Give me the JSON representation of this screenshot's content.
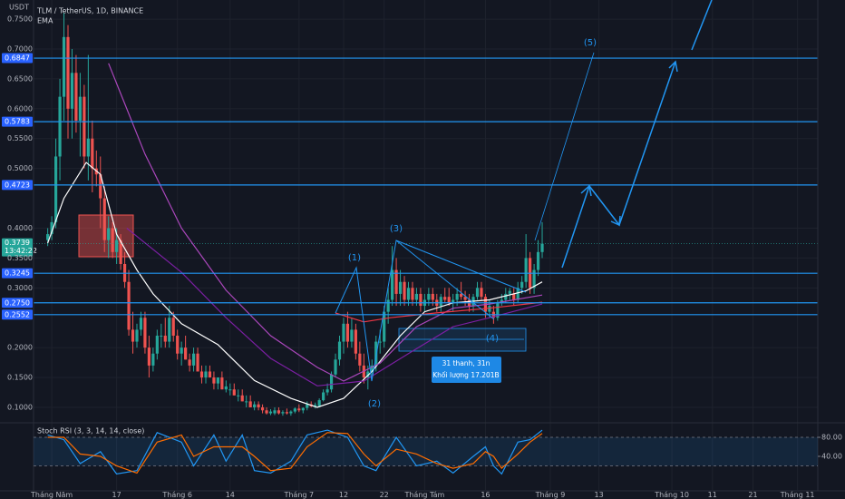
{
  "chart_data": {
    "type": "candlestick",
    "title": "TLM / TetherUS, 1D, BINANCE",
    "indicator_label": "EMA",
    "currency": "USDT",
    "up_color": "#26a69a",
    "down_color": "#ef5350",
    "x": [
      -1,
      0,
      1,
      2,
      3,
      4,
      5,
      6,
      7,
      8,
      9,
      10,
      11,
      12,
      13,
      14,
      15,
      16,
      17,
      18,
      19,
      20,
      21,
      22,
      23,
      24,
      25,
      26,
      27,
      28,
      29,
      30,
      31,
      32,
      33,
      34,
      35,
      36,
      37,
      38,
      39,
      40,
      41,
      42,
      43,
      44,
      45,
      46,
      47,
      48,
      49,
      50,
      51,
      52,
      53,
      54,
      55,
      56,
      57,
      58,
      59,
      60,
      61,
      62,
      63,
      64,
      65,
      66,
      67,
      68,
      69,
      70,
      71,
      72,
      73,
      74,
      75,
      76,
      77,
      78,
      79,
      80,
      81,
      82,
      83,
      84,
      85,
      86,
      87,
      88,
      89,
      90,
      91,
      92,
      93,
      94,
      95,
      96,
      97,
      98,
      99,
      100,
      101,
      102,
      103,
      104,
      105,
      106,
      107,
      108,
      109,
      110,
      111,
      112,
      113,
      114,
      115,
      116,
      117,
      118,
      119,
      120,
      121
    ],
    "ohlc": [
      [
        0.38,
        0.4,
        0.37,
        0.39
      ],
      [
        0.39,
        0.42,
        0.38,
        0.41
      ],
      [
        0.41,
        0.55,
        0.4,
        0.52
      ],
      [
        0.52,
        0.65,
        0.48,
        0.62
      ],
      [
        0.62,
        0.76,
        0.58,
        0.72
      ],
      [
        0.72,
        0.74,
        0.55,
        0.6
      ],
      [
        0.6,
        0.7,
        0.55,
        0.66
      ],
      [
        0.66,
        0.69,
        0.56,
        0.58
      ],
      [
        0.58,
        0.66,
        0.52,
        0.62
      ],
      [
        0.62,
        0.64,
        0.5,
        0.52
      ],
      [
        0.52,
        0.69,
        0.48,
        0.55
      ],
      [
        0.55,
        0.58,
        0.46,
        0.5
      ],
      [
        0.5,
        0.53,
        0.47,
        0.49
      ],
      [
        0.49,
        0.52,
        0.4,
        0.45
      ],
      [
        0.45,
        0.47,
        0.36,
        0.38
      ],
      [
        0.38,
        0.42,
        0.35,
        0.4
      ],
      [
        0.4,
        0.41,
        0.35,
        0.36
      ],
      [
        0.36,
        0.4,
        0.34,
        0.38
      ],
      [
        0.38,
        0.39,
        0.33,
        0.34
      ],
      [
        0.34,
        0.36,
        0.3,
        0.31
      ],
      [
        0.31,
        0.33,
        0.22,
        0.23
      ],
      [
        0.23,
        0.26,
        0.19,
        0.21
      ],
      [
        0.21,
        0.24,
        0.2,
        0.23
      ],
      [
        0.23,
        0.26,
        0.22,
        0.25
      ],
      [
        0.25,
        0.26,
        0.19,
        0.2
      ],
      [
        0.2,
        0.22,
        0.15,
        0.17
      ],
      [
        0.17,
        0.2,
        0.16,
        0.19
      ],
      [
        0.19,
        0.23,
        0.18,
        0.22
      ],
      [
        0.22,
        0.24,
        0.2,
        0.22
      ],
      [
        0.22,
        0.25,
        0.2,
        0.21
      ],
      [
        0.21,
        0.27,
        0.2,
        0.25
      ],
      [
        0.25,
        0.26,
        0.21,
        0.22
      ],
      [
        0.22,
        0.23,
        0.18,
        0.19
      ],
      [
        0.19,
        0.21,
        0.17,
        0.2
      ],
      [
        0.2,
        0.22,
        0.18,
        0.18
      ],
      [
        0.18,
        0.19,
        0.16,
        0.17
      ],
      [
        0.17,
        0.2,
        0.16,
        0.19
      ],
      [
        0.19,
        0.2,
        0.16,
        0.16
      ],
      [
        0.16,
        0.17,
        0.14,
        0.15
      ],
      [
        0.15,
        0.17,
        0.14,
        0.16
      ],
      [
        0.16,
        0.17,
        0.15,
        0.15
      ],
      [
        0.15,
        0.16,
        0.13,
        0.14
      ],
      [
        0.14,
        0.15,
        0.13,
        0.15
      ],
      [
        0.15,
        0.16,
        0.13,
        0.13
      ],
      [
        0.13,
        0.145,
        0.125,
        0.135
      ],
      [
        0.13,
        0.14,
        0.12,
        0.13
      ],
      [
        0.13,
        0.14,
        0.12,
        0.12
      ],
      [
        0.12,
        0.13,
        0.11,
        0.12
      ],
      [
        0.12,
        0.13,
        0.11,
        0.11
      ],
      [
        0.11,
        0.12,
        0.1,
        0.11
      ],
      [
        0.11,
        0.12,
        0.1,
        0.1
      ],
      [
        0.1,
        0.11,
        0.095,
        0.105
      ],
      [
        0.105,
        0.11,
        0.095,
        0.1
      ],
      [
        0.1,
        0.105,
        0.09,
        0.095
      ],
      [
        0.095,
        0.1,
        0.088,
        0.09
      ],
      [
        0.09,
        0.097,
        0.087,
        0.093
      ],
      [
        0.09,
        0.1,
        0.087,
        0.095
      ],
      [
        0.095,
        0.1,
        0.088,
        0.09
      ],
      [
        0.09,
        0.095,
        0.086,
        0.092
      ],
      [
        0.092,
        0.098,
        0.088,
        0.09
      ],
      [
        0.09,
        0.095,
        0.086,
        0.093
      ],
      [
        0.093,
        0.1,
        0.09,
        0.098
      ],
      [
        0.098,
        0.105,
        0.092,
        0.095
      ],
      [
        0.095,
        0.1,
        0.09,
        0.099
      ],
      [
        0.099,
        0.11,
        0.095,
        0.105
      ],
      [
        0.105,
        0.11,
        0.1,
        0.102
      ],
      [
        0.102,
        0.108,
        0.098,
        0.104
      ],
      [
        0.102,
        0.115,
        0.1,
        0.112
      ],
      [
        0.112,
        0.13,
        0.11,
        0.125
      ],
      [
        0.125,
        0.14,
        0.12,
        0.13
      ],
      [
        0.13,
        0.16,
        0.125,
        0.155
      ],
      [
        0.155,
        0.19,
        0.15,
        0.18
      ],
      [
        0.18,
        0.22,
        0.17,
        0.21
      ],
      [
        0.21,
        0.25,
        0.19,
        0.24
      ],
      [
        0.24,
        0.26,
        0.2,
        0.21
      ],
      [
        0.21,
        0.25,
        0.2,
        0.23
      ],
      [
        0.23,
        0.24,
        0.18,
        0.19
      ],
      [
        0.19,
        0.21,
        0.16,
        0.17
      ],
      [
        0.17,
        0.19,
        0.14,
        0.15
      ],
      [
        0.15,
        0.17,
        0.13,
        0.16
      ],
      [
        0.16,
        0.18,
        0.15,
        0.17
      ],
      [
        0.17,
        0.22,
        0.16,
        0.21
      ],
      [
        0.21,
        0.23,
        0.19,
        0.21
      ],
      [
        0.21,
        0.27,
        0.2,
        0.26
      ],
      [
        0.26,
        0.3,
        0.24,
        0.28
      ],
      [
        0.28,
        0.37,
        0.27,
        0.33
      ],
      [
        0.33,
        0.35,
        0.27,
        0.29
      ],
      [
        0.29,
        0.33,
        0.27,
        0.31
      ],
      [
        0.31,
        0.32,
        0.27,
        0.28
      ],
      [
        0.28,
        0.31,
        0.27,
        0.3
      ],
      [
        0.3,
        0.31,
        0.27,
        0.28
      ],
      [
        0.28,
        0.3,
        0.27,
        0.29
      ],
      [
        0.29,
        0.3,
        0.26,
        0.27
      ],
      [
        0.27,
        0.29,
        0.26,
        0.28
      ],
      [
        0.28,
        0.3,
        0.27,
        0.29
      ],
      [
        0.29,
        0.3,
        0.27,
        0.28
      ],
      [
        0.28,
        0.29,
        0.26,
        0.27
      ],
      [
        0.27,
        0.29,
        0.26,
        0.285
      ],
      [
        0.285,
        0.3,
        0.275,
        0.28
      ],
      [
        0.285,
        0.3,
        0.27,
        0.275
      ],
      [
        0.275,
        0.29,
        0.26,
        0.28
      ],
      [
        0.28,
        0.3,
        0.27,
        0.29
      ],
      [
        0.29,
        0.31,
        0.28,
        0.285
      ],
      [
        0.285,
        0.295,
        0.27,
        0.28
      ],
      [
        0.28,
        0.29,
        0.26,
        0.27
      ],
      [
        0.27,
        0.29,
        0.26,
        0.285
      ],
      [
        0.285,
        0.31,
        0.28,
        0.3
      ],
      [
        0.3,
        0.31,
        0.28,
        0.285
      ],
      [
        0.285,
        0.29,
        0.25,
        0.26
      ],
      [
        0.26,
        0.28,
        0.25,
        0.27
      ],
      [
        0.26,
        0.27,
        0.24,
        0.25
      ],
      [
        0.25,
        0.28,
        0.245,
        0.275
      ],
      [
        0.275,
        0.29,
        0.27,
        0.28
      ],
      [
        0.28,
        0.3,
        0.275,
        0.29
      ],
      [
        0.29,
        0.3,
        0.28,
        0.295
      ],
      [
        0.29,
        0.3,
        0.27,
        0.28
      ],
      [
        0.28,
        0.31,
        0.275,
        0.3
      ],
      [
        0.3,
        0.32,
        0.29,
        0.31
      ],
      [
        0.31,
        0.39,
        0.3,
        0.35
      ],
      [
        0.35,
        0.36,
        0.29,
        0.3
      ],
      [
        0.3,
        0.34,
        0.29,
        0.33
      ],
      [
        0.33,
        0.38,
        0.32,
        0.36
      ],
      [
        0.36,
        0.41,
        0.35,
        0.3739
      ]
    ],
    "ema_lines": [
      {
        "color": "#ffffff",
        "x": [
          -1,
          3,
          8.5,
          12,
          16,
          21,
          25,
          32,
          41,
          50,
          59,
          65.5,
          72,
          79,
          86,
          92,
          99,
          108,
          117,
          121
        ],
        "values": [
          0.375,
          0.45,
          0.51,
          0.49,
          0.39,
          0.33,
          0.29,
          0.24,
          0.205,
          0.145,
          0.115,
          0.1,
          0.115,
          0.16,
          0.22,
          0.26,
          0.275,
          0.28,
          0.295,
          0.31
        ]
      },
      {
        "color": "#ab47bc",
        "x": [
          14,
          23,
          32,
          43,
          54,
          65.5,
          72,
          81,
          90,
          99,
          108,
          121
        ],
        "values": [
          0.676,
          0.524,
          0.4,
          0.296,
          0.22,
          0.167,
          0.144,
          0.174,
          0.235,
          0.266,
          0.273,
          0.288
        ]
      },
      {
        "color": "#7b1fa2",
        "x": [
          18.5,
          32,
          43,
          54,
          65.5,
          77,
          88,
          99,
          108,
          121
        ],
        "values": [
          0.4,
          0.326,
          0.25,
          0.182,
          0.136,
          0.144,
          0.19,
          0.235,
          0.25,
          0.273
        ]
      },
      {
        "color": "#f23645",
        "x": [
          70,
          77,
          83.5,
          94.6,
          108,
          121
        ],
        "values": [
          0.258,
          0.243,
          0.25,
          0.258,
          0.266,
          0.276
        ]
      }
    ],
    "level_color": "#2196f3",
    "levels": [
      {
        "value": 0.6847,
        "label": "0.6847"
      },
      {
        "value": 0.5783,
        "label": "0.5783"
      },
      {
        "value": 0.4723,
        "label": "0.4723"
      },
      {
        "value": 0.3245,
        "label": "0.3245"
      },
      {
        "value": 0.275,
        "label": "0.2750"
      },
      {
        "value": 0.2552,
        "label": "0.2552"
      }
    ],
    "last_price": {
      "value": 0.3739,
      "label": "0.3739"
    },
    "countdown": "13:42:22",
    "xlim": [
      -4.5,
      189
    ],
    "ylim": [
      0.0787,
      0.782
    ],
    "xticks": [
      {
        "value": 0,
        "label": "Tháng Năm"
      },
      {
        "value": 16,
        "label": "17"
      },
      {
        "value": 31,
        "label": "Tháng 6"
      },
      {
        "value": 44,
        "label": "14"
      },
      {
        "value": 61,
        "label": "Tháng 7"
      },
      {
        "value": 72,
        "label": "12"
      },
      {
        "value": 82,
        "label": "22"
      },
      {
        "value": 92,
        "label": "Tháng Tám"
      },
      {
        "value": 107,
        "label": "16"
      },
      {
        "value": 123,
        "label": "Tháng 9"
      },
      {
        "value": 135,
        "label": "13"
      },
      {
        "value": 153,
        "label": "Tháng 10"
      },
      {
        "value": 163,
        "label": "11"
      },
      {
        "value": 173,
        "label": "21"
      },
      {
        "value": 184,
        "label": "Tháng 11"
      }
    ],
    "yticks": [
      {
        "value": 0.75,
        "label": "0.7500"
      },
      {
        "value": 0.7,
        "label": "0.7000"
      },
      {
        "value": 0.65,
        "label": "0.6500"
      },
      {
        "value": 0.6,
        "label": "0.6000"
      },
      {
        "value": 0.55,
        "label": "0.5500"
      },
      {
        "value": 0.5,
        "label": "0.5000"
      },
      {
        "value": 0.4,
        "label": "0.4000"
      },
      {
        "value": 0.35,
        "label": "0.3500"
      },
      {
        "value": 0.3,
        "label": "0.3000"
      },
      {
        "value": 0.2,
        "label": "0.2000"
      },
      {
        "value": 0.15,
        "label": "0.1500"
      },
      {
        "value": 0.1,
        "label": "0.1000"
      }
    ],
    "annotations": {
      "waves": [
        "(1)",
        "(2)",
        "(3)",
        "(4)",
        "(5)"
      ],
      "info": [
        "31 thanh, 31n",
        "Khối lượng 17.201B"
      ]
    },
    "stoch": {
      "type": "line",
      "title": "Stoch RSI (3, 3, 14, 14, close)",
      "ylim": [
        -30.5,
        102.9
      ],
      "yticks": [
        {
          "value": 80,
          "label": "80.00"
        },
        {
          "value": 40,
          "label": "40.00"
        }
      ],
      "bands": [
        20,
        80
      ],
      "series": [
        {
          "color": "#2196f3",
          "x": [
            -1,
            3,
            7,
            12,
            16,
            21,
            26,
            32,
            35,
            40,
            43,
            47,
            50,
            54,
            59,
            63,
            68,
            73,
            77,
            80,
            85,
            90,
            95,
            99,
            104,
            107,
            109,
            111,
            115,
            118,
            121
          ],
          "values": [
            85,
            75,
            25,
            50,
            3,
            10,
            90,
            70,
            20,
            85,
            30,
            85,
            10,
            5,
            30,
            85,
            95,
            80,
            20,
            10,
            80,
            20,
            30,
            5,
            40,
            60,
            20,
            3,
            70,
            75,
            95
          ]
        },
        {
          "color": "#ff6d00",
          "x": [
            -1,
            3,
            7,
            12,
            16,
            21,
            26,
            32,
            35,
            40,
            43,
            47,
            50,
            54,
            59,
            63,
            68,
            73,
            77,
            80,
            85,
            90,
            95,
            99,
            104,
            107,
            109,
            111,
            115,
            118,
            121
          ],
          "values": [
            80,
            80,
            45,
            40,
            20,
            5,
            70,
            85,
            40,
            60,
            60,
            60,
            40,
            10,
            15,
            60,
            90,
            88,
            45,
            20,
            55,
            45,
            25,
            15,
            25,
            50,
            40,
            15,
            45,
            70,
            88
          ]
        }
      ]
    }
  }
}
